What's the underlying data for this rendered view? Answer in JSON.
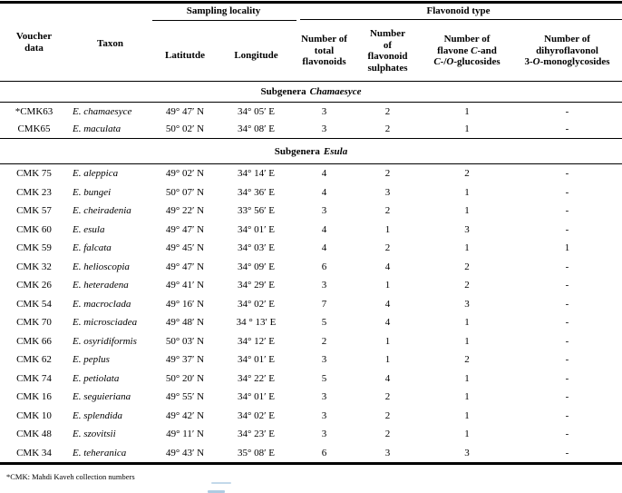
{
  "table": {
    "group_headers": {
      "sampling": "Sampling locality",
      "flavonoid": "Flavonoid type"
    },
    "columns": {
      "voucher": [
        "Voucher",
        "data"
      ],
      "taxon": "Taxon",
      "latitude": "Latitutde",
      "longitude": "Longitude",
      "total": [
        "Number of",
        "total",
        "flavonoids"
      ],
      "sulphates": [
        "Number",
        "of",
        "flavonoid",
        "sulphates"
      ],
      "glucosides": {
        "l1": "Number of",
        "l2a": "flavone ",
        "l2b": "C",
        "l2c": "-and",
        "l3a": "C",
        "l3b": "-/",
        "l3c": "O",
        "l3d": "-glucosides"
      },
      "dihydro": {
        "l1": "Number of",
        "l2": "dihyroflavonol",
        "l3a": "3-",
        "l3b": "O",
        "l3c": "-monoglycosides"
      }
    },
    "sections": [
      {
        "title_prefix": "Subgenera",
        "title_name": "Chamaesyce",
        "rows": [
          [
            "*CMK63",
            "E. chamaesyce",
            "49° 47′ N",
            "34° 05′ E",
            "3",
            "2",
            "1",
            "-"
          ],
          [
            "CMK65",
            "E. maculata",
            "50° 02′ N",
            "34° 08′ E",
            "3",
            "2",
            "1",
            "-"
          ]
        ]
      },
      {
        "title_prefix": "Subgenera",
        "title_name": "Esula",
        "rows": [
          [
            "CMK 75",
            "E. aleppica",
            "49° 02′ N",
            "34° 14′ E",
            "4",
            "2",
            "2",
            "-"
          ],
          [
            "CMK 23",
            "E. bungei",
            "50° 07′ N",
            "34° 36′ E",
            "4",
            "3",
            "1",
            "-"
          ],
          [
            "CMK 57",
            "E. cheiradenia",
            "49° 22′ N",
            "33° 56′ E",
            "3",
            "2",
            "1",
            "-"
          ],
          [
            "CMK 60",
            "E. esula",
            "49° 47′ N",
            "34° 01′ E",
            "4",
            "1",
            "3",
            "-"
          ],
          [
            "CMK 59",
            "E. falcata",
            "49° 45′ N",
            "34° 03′ E",
            "4",
            "2",
            "1",
            "1"
          ],
          [
            "CMK 32",
            "E. helioscopia",
            "49° 47′ N",
            "34° 09′ E",
            "6",
            "4",
            "2",
            "-"
          ],
          [
            "CMK 26",
            "E. heteradena",
            "49° 41′ N",
            "34° 29′ E",
            "3",
            "1",
            "2",
            "-"
          ],
          [
            "CMK 54",
            "E. macroclada",
            "49° 16′ N",
            "34° 02′ E",
            "7",
            "4",
            "3",
            "-"
          ],
          [
            "CMK 70",
            "E. microsciadea",
            "49° 48′ N",
            "34 ° 13′ E",
            "5",
            "4",
            "1",
            "-"
          ],
          [
            "CMK 66",
            "E. osyridiformis",
            "50° 03′ N",
            "34° 12′ E",
            "2",
            "1",
            "1",
            "-"
          ],
          [
            "CMK 62",
            "E. peplus",
            "49° 37′ N",
            "34° 01′ E",
            "3",
            "1",
            "2",
            "-"
          ],
          [
            "CMK 74",
            "E. petiolata",
            "50° 20′ N",
            "34° 22′ E",
            "5",
            "4",
            "1",
            "-"
          ],
          [
            "CMK 16",
            "E. seguieriana",
            "49° 55′ N",
            "34° 01′ E",
            "3",
            "2",
            "1",
            "-"
          ],
          [
            "CMK 10",
            "E. splendida",
            "49° 42′ N",
            "34° 02′ E",
            "3",
            "2",
            "1",
            "-"
          ],
          [
            "CMK 48",
            "E. szovitsii",
            "49° 11′ N",
            "34° 23′ E",
            "3",
            "2",
            "1",
            "-"
          ],
          [
            "CMK 34",
            "E. teheranica",
            "49° 43′ N",
            "35° 08′ E",
            "6",
            "3",
            "3",
            "-"
          ]
        ]
      }
    ],
    "footnote": "*CMK: Mahdi Kaveh collection numbers"
  },
  "colors": {
    "line": "#000000",
    "text": "#000000",
    "artifact_blue": "#b9d4e8"
  }
}
